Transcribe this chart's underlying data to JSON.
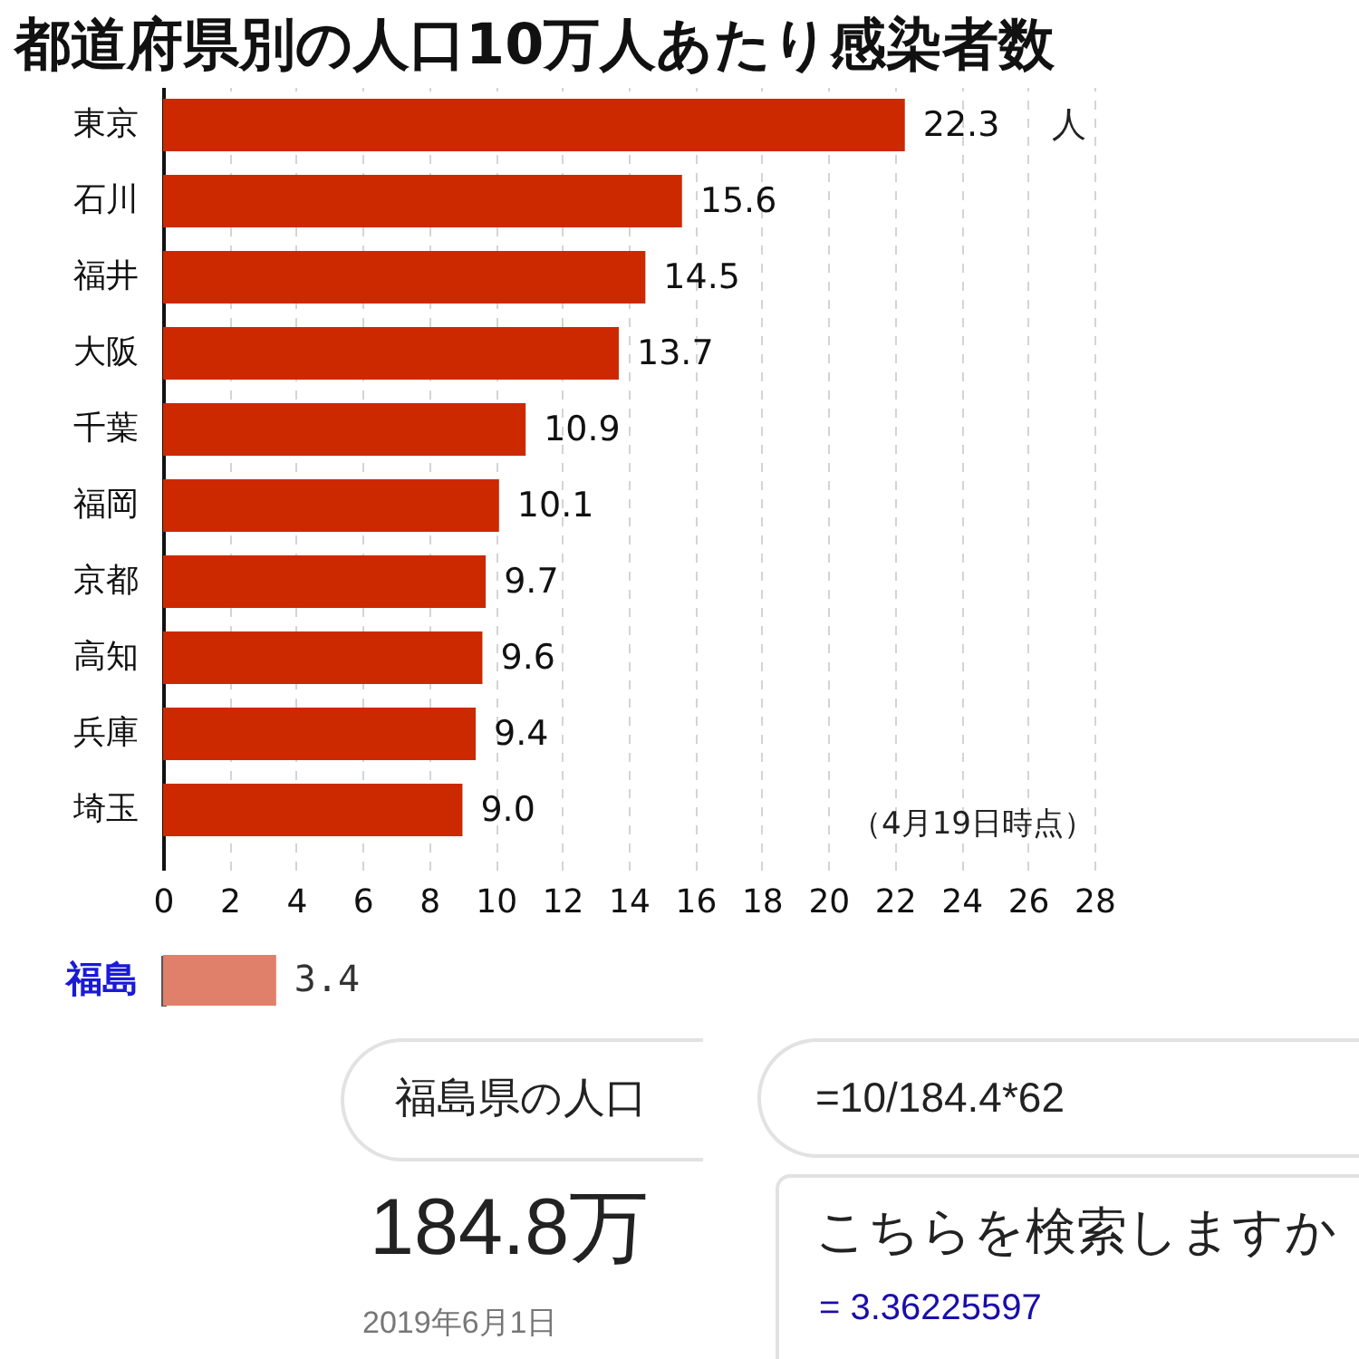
{
  "chart_data": [
    {
      "type": "bar",
      "orientation": "horizontal",
      "title": "都道府県別の人口10万人あたり感染者数",
      "categories": [
        "東京",
        "石川",
        "福井",
        "大阪",
        "千葉",
        "福岡",
        "京都",
        "高知",
        "兵庫",
        "埼玉"
      ],
      "values": [
        22.3,
        15.6,
        14.5,
        13.7,
        10.9,
        10.1,
        9.7,
        9.6,
        9.4,
        9.0
      ],
      "value_labels": [
        "22.3",
        "15.6",
        "14.5",
        "13.7",
        "10.9",
        "10.1",
        "9.7",
        "9.6",
        "9.4",
        "9.0"
      ],
      "color": "#cc2900",
      "xlim": [
        0,
        28
      ],
      "xticks": [
        0,
        2,
        4,
        6,
        8,
        10,
        12,
        14,
        16,
        18,
        20,
        22,
        24,
        26,
        28
      ],
      "grid": "x",
      "annotations": [
        "人",
        "（4月19日時点）"
      ]
    },
    {
      "type": "bar",
      "orientation": "horizontal",
      "categories": [
        "福島"
      ],
      "values": [
        3.4
      ],
      "value_labels": [
        "3.4"
      ],
      "color": "#e0806a",
      "xlim": [
        0,
        28
      ],
      "tick_labels": "y"
    },
    {
      "type": "other",
      "annotations": [
        "福島県の人口",
        "184.8万",
        "2019年6月1日",
        "=10/184.4*62",
        "こちらを検索しますか",
        "= 3.36225597"
      ]
    }
  ]
}
